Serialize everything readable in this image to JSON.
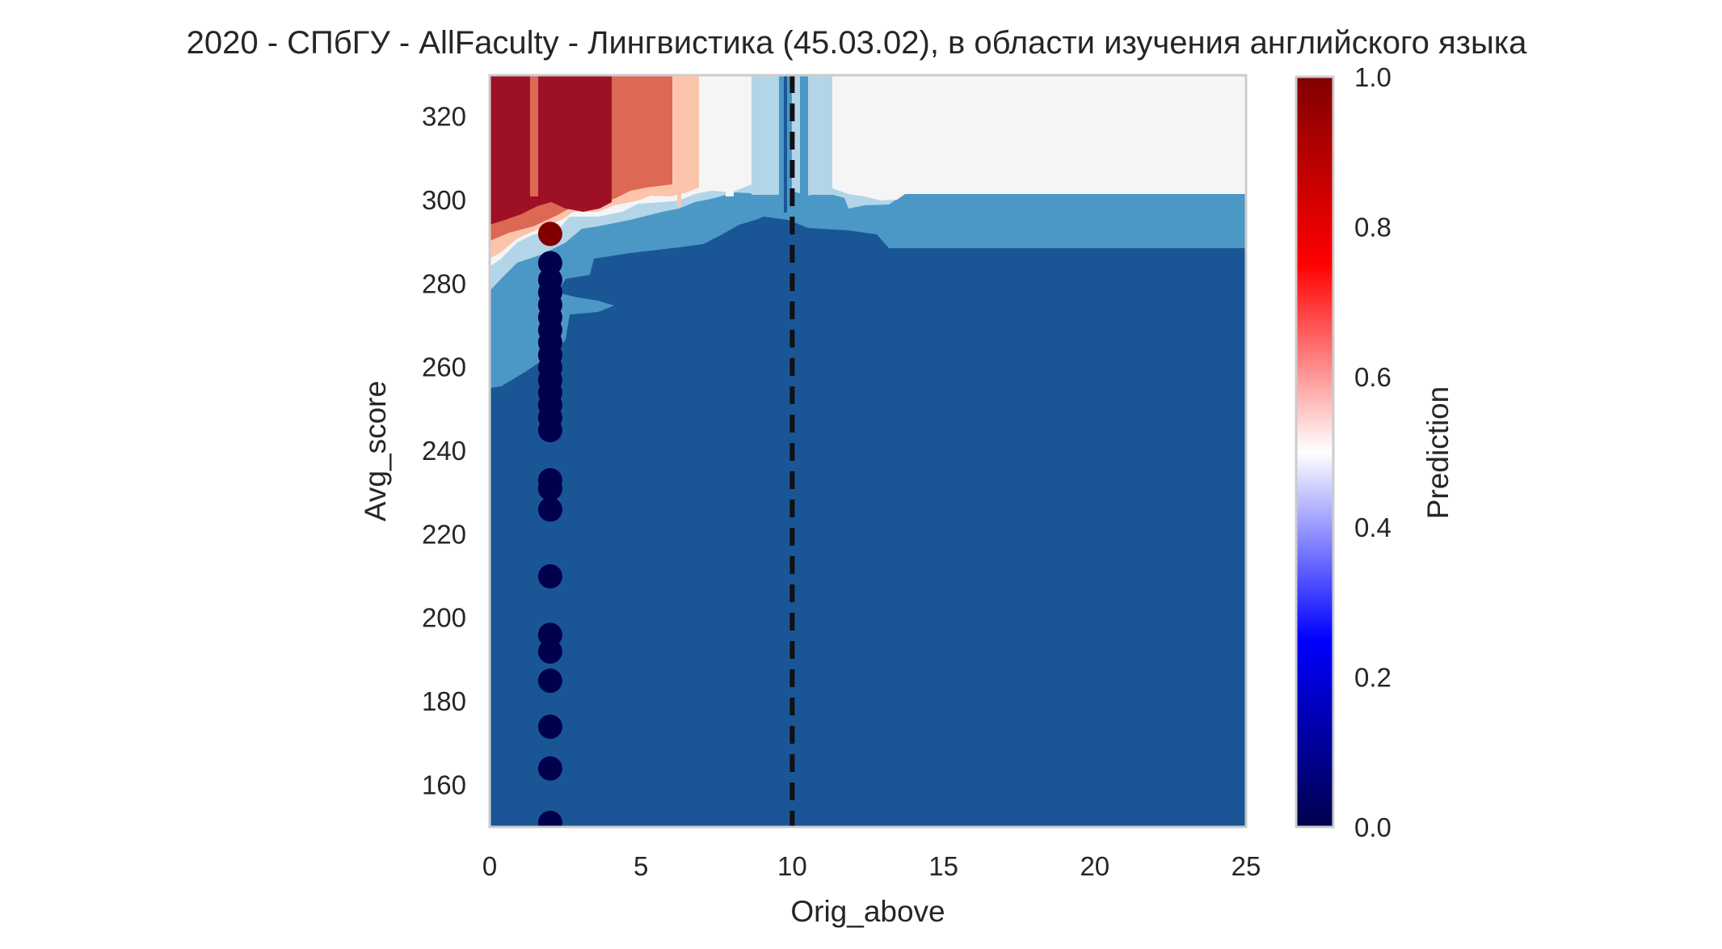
{
  "chart_data": {
    "type": "heatmap",
    "title": "2020 - СПбГУ - AllFaculty - Лингвистика (45.03.02), в области изучения английского языка",
    "xlabel": "Orig_above",
    "ylabel": "Avg_score",
    "xlim": [
      0,
      25
    ],
    "ylim": [
      150,
      330
    ],
    "x_ticks": [
      "0",
      "5",
      "10",
      "15",
      "20",
      "25"
    ],
    "y_ticks": [
      "160",
      "180",
      "200",
      "220",
      "240",
      "260",
      "280",
      "300",
      "320"
    ],
    "grid": false,
    "threshold_line": {
      "x": 10,
      "style": "dashed",
      "color": "#111111"
    },
    "colorbar": {
      "label": "Prediction",
      "colormap": "seismic",
      "range": [
        0.0,
        1.0
      ],
      "ticks": [
        "0.0",
        "0.2",
        "0.4",
        "0.6",
        "0.8",
        "1.0"
      ]
    },
    "contour_levels": {
      "0.05": "#1a5696",
      "0.2": "#4b98c7",
      "0.35": "#b3d5e8",
      "0.5": "#f5f5f5",
      "0.65": "#fbc4ab",
      "0.8": "#dd6853",
      "0.95": "#9e1026"
    },
    "points": [
      {
        "x": 2,
        "y": 292,
        "p": 1.0
      },
      {
        "x": 2,
        "y": 285,
        "p": 0.0
      },
      {
        "x": 2,
        "y": 281,
        "p": 0.0
      },
      {
        "x": 2,
        "y": 278,
        "p": 0.0
      },
      {
        "x": 2,
        "y": 275,
        "p": 0.0
      },
      {
        "x": 2,
        "y": 272,
        "p": 0.0
      },
      {
        "x": 2,
        "y": 269,
        "p": 0.0
      },
      {
        "x": 2,
        "y": 266,
        "p": 0.0
      },
      {
        "x": 2,
        "y": 263,
        "p": 0.0
      },
      {
        "x": 2,
        "y": 260,
        "p": 0.0
      },
      {
        "x": 2,
        "y": 257,
        "p": 0.0
      },
      {
        "x": 2,
        "y": 254,
        "p": 0.0
      },
      {
        "x": 2,
        "y": 251,
        "p": 0.0
      },
      {
        "x": 2,
        "y": 248,
        "p": 0.0
      },
      {
        "x": 2,
        "y": 245,
        "p": 0.0
      },
      {
        "x": 2,
        "y": 233,
        "p": 0.0
      },
      {
        "x": 2,
        "y": 231,
        "p": 0.0
      },
      {
        "x": 2,
        "y": 226,
        "p": 0.0
      },
      {
        "x": 2,
        "y": 210,
        "p": 0.0
      },
      {
        "x": 2,
        "y": 196,
        "p": 0.0
      },
      {
        "x": 2,
        "y": 192,
        "p": 0.0
      },
      {
        "x": 2,
        "y": 185,
        "p": 0.0
      },
      {
        "x": 2,
        "y": 174,
        "p": 0.0
      },
      {
        "x": 2,
        "y": 164,
        "p": 0.0
      },
      {
        "x": 2,
        "y": 151,
        "p": 0.0
      }
    ],
    "point_colors": {
      "high": "#800000",
      "low": "#00004c"
    }
  }
}
